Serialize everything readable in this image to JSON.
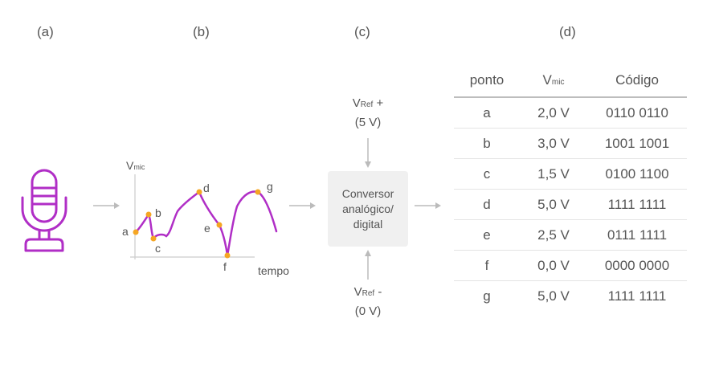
{
  "labels": {
    "a": "(a)",
    "b": "(b)",
    "c": "(c)",
    "d": "(d)"
  },
  "graph": {
    "y_axis": "V",
    "y_axis_sub": "mic",
    "x_axis": "tempo",
    "points": [
      "a",
      "b",
      "c",
      "d",
      "e",
      "f",
      "g"
    ]
  },
  "vref_top": {
    "v": "V",
    "sub": "Ref",
    "sign": " +",
    "value": "(5 V)"
  },
  "vref_bottom": {
    "v": "V",
    "sub": "Ref",
    "sign": " -",
    "value": "(0 V)"
  },
  "converter": {
    "line1": "Conversor",
    "line2": "analógico/",
    "line3": "digital"
  },
  "table": {
    "headers": {
      "point": "ponto",
      "v": "V",
      "v_sub": "mic",
      "code": "Código"
    },
    "rows": [
      {
        "point": "a",
        "voltage": "2,0 V",
        "code": "0110 0110"
      },
      {
        "point": "b",
        "voltage": "3,0 V",
        "code": "1001 1001"
      },
      {
        "point": "c",
        "voltage": "1,5 V",
        "code": "0100 1100"
      },
      {
        "point": "d",
        "voltage": "5,0 V",
        "code": "1111 1111"
      },
      {
        "point": "e",
        "voltage": "2,5 V",
        "code": "0111 1111"
      },
      {
        "point": "f",
        "voltage": "0,0 V",
        "code": "0000 0000"
      },
      {
        "point": "g",
        "voltage": "5,0 V",
        "code": "1111 1111"
      }
    ]
  },
  "colors": {
    "accent": "#b02ec6",
    "marker": "#f5a623",
    "arrow": "#bbbbbb"
  }
}
